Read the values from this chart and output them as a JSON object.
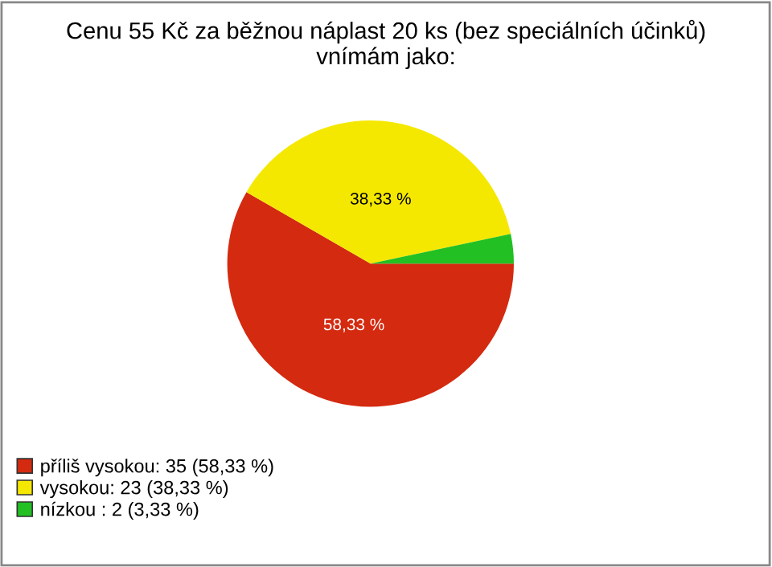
{
  "chart_data": {
    "type": "pie",
    "title": "Cenu 55 Kč za běžnou náplast 20 ks (bez speciálních účinků)\nvnímám jako:",
    "categories": [
      "příliš vysokou: 35 (58,33 %)",
      "vysokou: 23 (38,33 %)",
      "nízkou : 2 (3,33 %)"
    ],
    "values": [
      58.33,
      38.33,
      3.33
    ],
    "colors": [
      "#d42a10",
      "#f5e800",
      "#22c022"
    ],
    "value_labels": [
      "58,33 %",
      "38,33 %",
      null
    ],
    "legend": "bottom left"
  }
}
